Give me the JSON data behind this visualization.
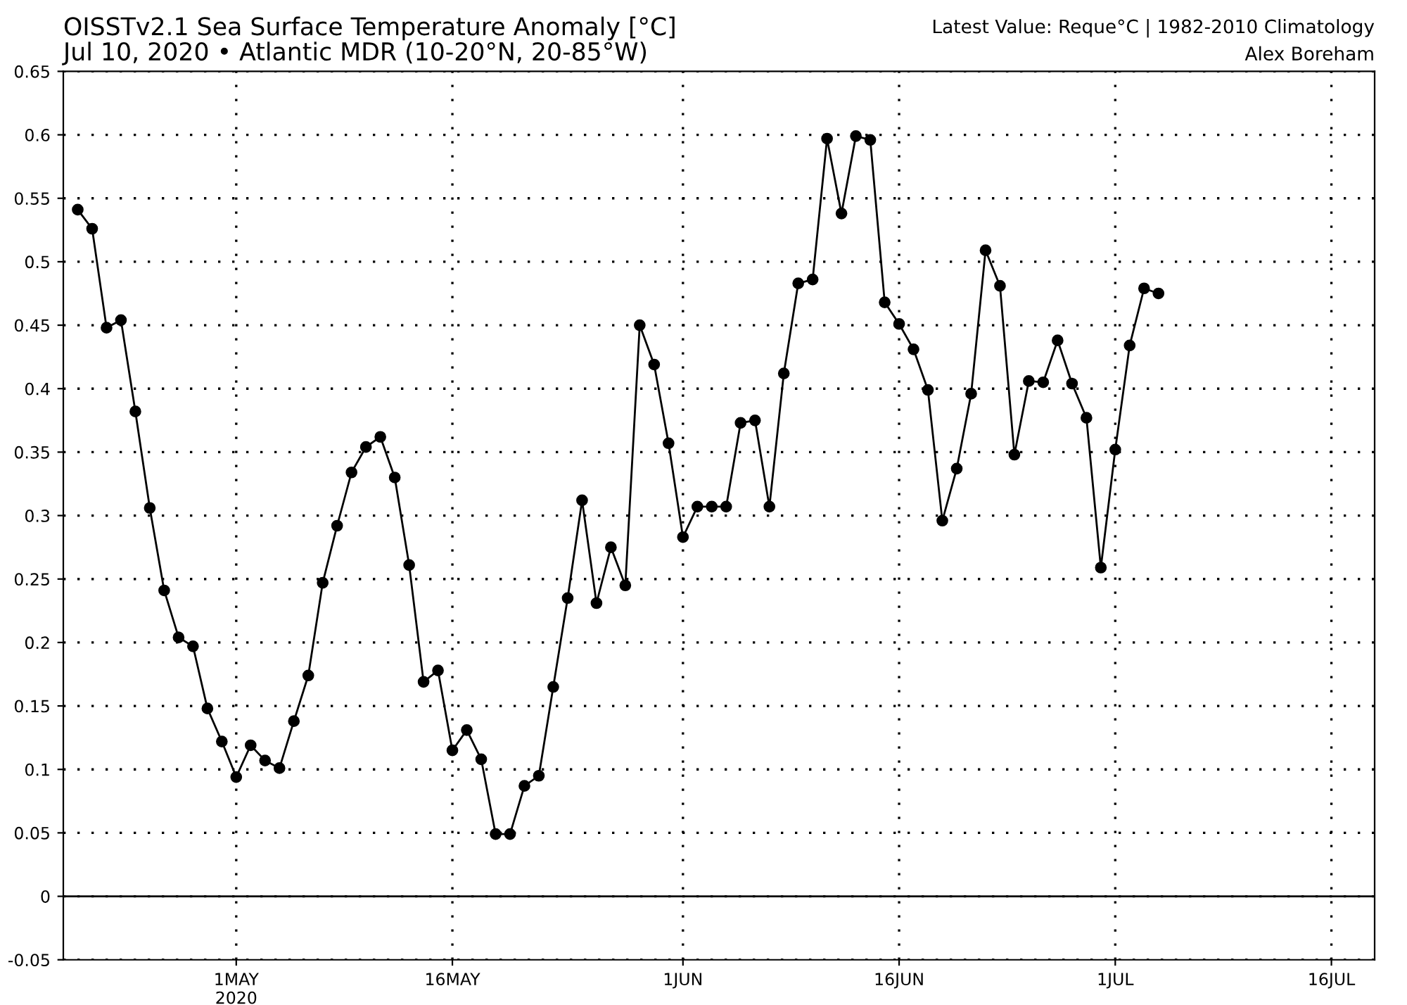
{
  "chart_data": {
    "type": "line",
    "title": "OISSTv2.1 Sea Surface Temperature Anomaly [°C]",
    "subtitle": "Jul 10, 2020 • Atlantic MDR (10-20°N, 20-85°W)",
    "annotations": [
      "Latest Value: Reque°C | 1982-2010 Climatology",
      "Alex Boreham"
    ],
    "x": [
      "2020-04-20",
      "2020-04-21",
      "2020-04-22",
      "2020-04-23",
      "2020-04-24",
      "2020-04-25",
      "2020-04-26",
      "2020-04-27",
      "2020-04-28",
      "2020-04-29",
      "2020-04-30",
      "2020-05-01",
      "2020-05-02",
      "2020-05-03",
      "2020-05-04",
      "2020-05-05",
      "2020-05-06",
      "2020-05-07",
      "2020-05-08",
      "2020-05-09",
      "2020-05-10",
      "2020-05-11",
      "2020-05-12",
      "2020-05-13",
      "2020-05-14",
      "2020-05-15",
      "2020-05-16",
      "2020-05-17",
      "2020-05-18",
      "2020-05-19",
      "2020-05-20",
      "2020-05-21",
      "2020-05-22",
      "2020-05-23",
      "2020-05-24",
      "2020-05-25",
      "2020-05-26",
      "2020-05-27",
      "2020-05-28",
      "2020-05-29",
      "2020-05-30",
      "2020-05-31",
      "2020-06-01",
      "2020-06-02",
      "2020-06-03",
      "2020-06-04",
      "2020-06-05",
      "2020-06-06",
      "2020-06-07",
      "2020-06-08",
      "2020-06-09",
      "2020-06-10",
      "2020-06-11",
      "2020-06-12",
      "2020-06-13",
      "2020-06-14",
      "2020-06-15",
      "2020-06-16",
      "2020-06-17",
      "2020-06-18",
      "2020-06-19",
      "2020-06-20",
      "2020-06-21",
      "2020-06-22",
      "2020-06-23",
      "2020-06-24",
      "2020-06-25",
      "2020-06-26",
      "2020-06-27",
      "2020-06-28",
      "2020-06-29",
      "2020-06-30",
      "2020-07-01",
      "2020-07-02",
      "2020-07-03",
      "2020-07-04"
    ],
    "series": [
      {
        "color": "#000000",
        "values": [
          0.541,
          0.526,
          0.448,
          0.454,
          0.382,
          0.306,
          0.241,
          0.204,
          0.197,
          0.148,
          0.122,
          0.094,
          0.119,
          0.107,
          0.101,
          0.138,
          0.174,
          0.247,
          0.292,
          0.334,
          0.354,
          0.362,
          0.33,
          0.261,
          0.169,
          0.178,
          0.115,
          0.131,
          0.108,
          0.049,
          0.049,
          0.087,
          0.095,
          0.165,
          0.235,
          0.312,
          0.231,
          0.275,
          0.245,
          0.45,
          0.419,
          0.357,
          0.283,
          0.307,
          0.307,
          0.307,
          0.373,
          0.375,
          0.307,
          0.412,
          0.483,
          0.486,
          0.597,
          0.538,
          0.599,
          0.596,
          0.468,
          0.451,
          0.431,
          0.399,
          0.296,
          0.337,
          0.396,
          0.509,
          0.481,
          0.348,
          0.406,
          0.405,
          0.438,
          0.404,
          0.377,
          0.259,
          0.352,
          0.434,
          0.479,
          0.475
        ]
      }
    ],
    "xlim": [
      "2020-04-19",
      "2020-07-19"
    ],
    "xticks": [
      {
        "value": "2020-05-01",
        "label": "1MAY\n2020"
      },
      {
        "value": "2020-05-16",
        "label": "16MAY"
      },
      {
        "value": "2020-06-01",
        "label": "1JUN"
      },
      {
        "value": "2020-06-16",
        "label": "16JUN"
      },
      {
        "value": "2020-07-01",
        "label": "1JUL"
      },
      {
        "value": "2020-07-16",
        "label": "16JUL"
      }
    ],
    "ylim": [
      -0.05,
      0.65
    ],
    "yticks": [
      -0.05,
      0,
      0.05,
      0.1,
      0.15,
      0.2,
      0.25,
      0.3,
      0.35,
      0.4,
      0.45,
      0.5,
      0.55,
      0.6,
      0.65
    ],
    "ref_lines": [
      {
        "axis": "y",
        "value": 0,
        "color": "#000000",
        "line_style": "solid"
      }
    ],
    "grid": true,
    "marker": "circle",
    "line_style": "solid"
  }
}
